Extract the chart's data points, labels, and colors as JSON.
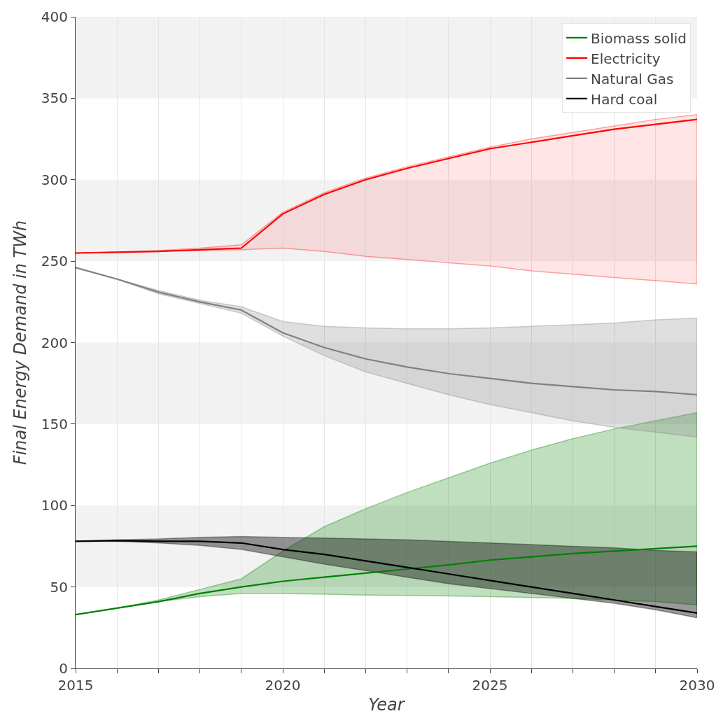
{
  "chart_data": {
    "type": "line",
    "xlabel": "Year",
    "ylabel": "Final Energy Demand in TWh",
    "x": [
      2015,
      2016,
      2017,
      2018,
      2019,
      2020,
      2021,
      2022,
      2023,
      2024,
      2025,
      2026,
      2027,
      2028,
      2029,
      2030
    ],
    "xlim": [
      2015,
      2030
    ],
    "xticks": [
      2015,
      {
        "value": 2016,
        "label": null
      },
      {
        "value": 2017,
        "label": null
      },
      {
        "value": 2018,
        "label": null
      },
      {
        "value": 2019,
        "label": null
      },
      2020,
      {
        "value": 2021,
        "label": null
      },
      {
        "value": 2022,
        "label": null
      },
      {
        "value": 2023,
        "label": null
      },
      {
        "value": 2024,
        "label": null
      },
      2025,
      {
        "value": 2026,
        "label": null
      },
      {
        "value": 2027,
        "label": null
      },
      {
        "value": 2028,
        "label": null
      },
      {
        "value": 2029,
        "label": null
      },
      2030
    ],
    "ylim": [
      0,
      400
    ],
    "yticks": [
      0,
      50,
      100,
      150,
      200,
      250,
      300,
      350,
      400
    ],
    "grid": "x",
    "legend": "top right",
    "line_style": "solid",
    "bands": [
      {
        "axis": "y",
        "from": 50,
        "to": 100,
        "color": "#f2f2f2"
      },
      {
        "axis": "y",
        "from": 150,
        "to": 200,
        "color": "#f2f2f2"
      },
      {
        "axis": "y",
        "from": 250,
        "to": 300,
        "color": "#f2f2f2"
      },
      {
        "axis": "y",
        "from": 350,
        "to": 400,
        "color": "#f2f2f2"
      }
    ],
    "series": [
      {
        "name": "Biomass solid",
        "color": "#008000",
        "values": [
          33,
          37,
          41,
          46,
          50,
          53.5,
          56,
          58.5,
          61,
          63.5,
          66.5,
          68.5,
          70.5,
          72,
          73.5,
          75
        ],
        "lower": [
          33,
          37,
          41,
          44,
          46,
          46,
          45.5,
          45,
          44.8,
          44.5,
          44,
          43.5,
          43,
          42,
          41,
          39
        ],
        "upper": [
          33,
          37,
          42,
          48.5,
          55,
          72,
          87,
          98,
          108,
          117,
          126,
          134,
          141,
          147,
          152,
          157
        ]
      },
      {
        "name": "Electricity",
        "color": "#ff0000",
        "values": [
          255,
          255.5,
          256,
          257,
          258,
          279,
          291,
          300,
          307,
          313,
          319,
          323,
          327,
          331,
          334,
          337
        ],
        "lower": [
          255,
          255.5,
          256,
          256.5,
          257,
          258,
          256,
          253,
          251,
          249,
          247,
          244,
          242,
          240,
          238,
          236
        ],
        "upper": [
          255,
          255.5,
          256.5,
          258,
          260,
          280,
          292,
          301,
          308,
          314,
          320,
          325,
          329,
          333,
          337,
          340
        ]
      },
      {
        "name": "Natural Gas",
        "color": "#808080",
        "values": [
          246,
          239,
          231,
          225,
          220,
          206,
          197,
          190,
          185,
          181,
          178,
          175,
          173,
          171,
          170,
          168
        ],
        "lower": [
          246,
          239,
          230,
          224,
          218,
          204,
          192,
          182,
          175,
          168,
          162,
          157,
          152,
          148,
          145,
          142
        ],
        "upper": [
          246,
          239,
          232,
          226,
          222,
          213,
          210,
          209,
          208.5,
          208.5,
          209,
          210,
          211,
          212,
          214,
          215
        ]
      },
      {
        "name": "Hard coal",
        "color": "#000000",
        "values": [
          78,
          78.5,
          78,
          78,
          77,
          73,
          70,
          66,
          62,
          58,
          54,
          50,
          46,
          42,
          38,
          34
        ],
        "lower": [
          78,
          78,
          77,
          75.5,
          73,
          68.5,
          64,
          60,
          56,
          52,
          49,
          46,
          43,
          40,
          36,
          31
        ],
        "upper": [
          78,
          79,
          79.5,
          80.5,
          81,
          80.5,
          80,
          79.5,
          79,
          78,
          77,
          76,
          75,
          74,
          72.5,
          71.5
        ]
      }
    ]
  }
}
